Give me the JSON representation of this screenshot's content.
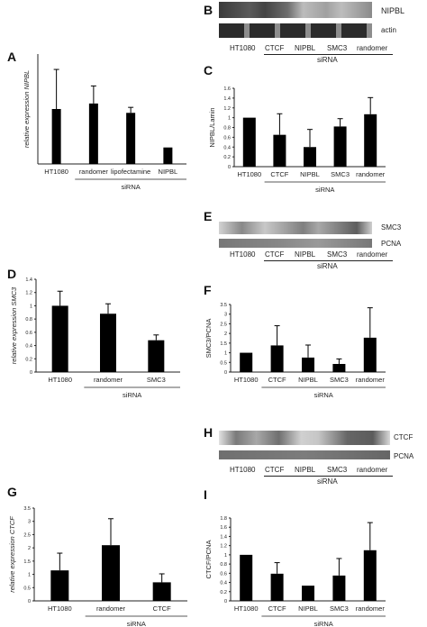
{
  "panels": {
    "A": {
      "letter": "A"
    },
    "B": {
      "letter": "B",
      "bands": [
        "NIPBL",
        "actin"
      ],
      "lanes": [
        "HT1080",
        "CTCF",
        "NIPBL",
        "SMC3",
        "randomer"
      ],
      "group": "siRNA"
    },
    "C": {
      "letter": "C"
    },
    "D": {
      "letter": "D"
    },
    "E": {
      "letter": "E",
      "bands": [
        "SMC3",
        "PCNA"
      ],
      "lanes": [
        "HT1080",
        "CTCF",
        "NIPBL",
        "SMC3",
        "randomer"
      ],
      "group": "siRNA"
    },
    "F": {
      "letter": "F"
    },
    "G": {
      "letter": "G"
    },
    "H": {
      "letter": "H",
      "bands": [
        "CTCF",
        "PCNA"
      ],
      "lanes": [
        "HT1080",
        "CTCF",
        "NIPBL",
        "SMC3",
        "randomer"
      ],
      "group": "siRNA"
    },
    "I": {
      "letter": "I"
    }
  },
  "chart_data": [
    {
      "id": "A",
      "type": "bar",
      "categories": [
        "HT1080",
        "randomer",
        "lipofectamine",
        "NIPBL"
      ],
      "values": [
        1.0,
        1.1,
        0.93,
        0.3
      ],
      "errors": [
        0.72,
        0.32,
        0.1,
        0
      ],
      "ylabel": "relative expression NIPBL",
      "xlabel": "siRNA",
      "ylim": [
        0,
        2
      ],
      "yticks": [],
      "grid": false
    },
    {
      "id": "C",
      "type": "bar",
      "categories": [
        "HT1080",
        "CTCF",
        "NIPBL",
        "SMC3",
        "randomer"
      ],
      "values": [
        1.0,
        0.65,
        0.4,
        0.82,
        1.07
      ],
      "errors": [
        0,
        0.43,
        0.36,
        0.16,
        0.34
      ],
      "ylabel": "NIPBL/Lamin",
      "xlabel": "siRNA",
      "ylim": [
        0,
        1.6
      ],
      "yticks": [
        "0",
        "0.2",
        "0.4",
        "0.6",
        "0.8",
        "1",
        "1.2",
        "1.4",
        "1.6"
      ],
      "grid": false
    },
    {
      "id": "D",
      "type": "bar",
      "categories": [
        "HT1080",
        "randomer",
        "SMC3"
      ],
      "values": [
        1.0,
        0.88,
        0.48
      ],
      "errors": [
        0.22,
        0.15,
        0.08
      ],
      "ylabel": "relative expression SMC3",
      "xlabel": "siRNA",
      "ylim": [
        0,
        1.4
      ],
      "yticks": [
        "0",
        "0.2",
        "0.4",
        "0.6",
        "0.8",
        "1",
        "1.2",
        "1.4"
      ],
      "grid": false
    },
    {
      "id": "F",
      "type": "bar",
      "categories": [
        "HT1080",
        "CTCF",
        "NIPBL",
        "SMC3",
        "randomer"
      ],
      "values": [
        1.0,
        1.38,
        0.75,
        0.42,
        1.78
      ],
      "errors": [
        0,
        1.02,
        0.65,
        0.26,
        1.55
      ],
      "ylabel": "SMC3/PCNA",
      "xlabel": "siRNA",
      "ylim": [
        0,
        3.5
      ],
      "yticks": [
        "0",
        "0.5",
        "1",
        "1.5",
        "2",
        "2.5",
        "3",
        "3.5"
      ],
      "grid": false
    },
    {
      "id": "G",
      "type": "bar",
      "categories": [
        "HT1080",
        "randomer",
        "CTCF"
      ],
      "values": [
        1.15,
        2.1,
        0.7
      ],
      "errors": [
        0.65,
        1.0,
        0.32
      ],
      "ylabel": "relative expression CTCF",
      "xlabel": "siRNA",
      "ylim": [
        0,
        3.5
      ],
      "yticks": [
        "0",
        "0.5",
        "1",
        "1.5",
        "2",
        "2.5",
        "3",
        "3.5"
      ],
      "grid": false
    },
    {
      "id": "I",
      "type": "bar",
      "categories": [
        "HT1080",
        "CTCF",
        "NIPBL",
        "SMC3",
        "randomer"
      ],
      "values": [
        1.0,
        0.59,
        0.33,
        0.55,
        1.1
      ],
      "errors": [
        0,
        0.24,
        0,
        0.37,
        0.6
      ],
      "ylabel": "CTCF/PCNA",
      "xlabel": "siRNA",
      "ylim": [
        0,
        1.8
      ],
      "yticks": [
        "0",
        "0.2",
        "0.4",
        "0.6",
        "0.8",
        "1",
        "1.2",
        "1.4",
        "1.6",
        "1.8"
      ],
      "grid": false
    }
  ]
}
